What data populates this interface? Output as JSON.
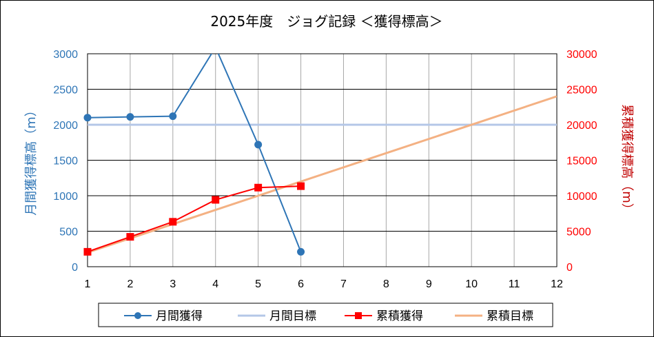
{
  "chart_data": {
    "type": "line",
    "title": "2025年度　ジョグ記録 ＜獲得標高＞",
    "xlabel": "",
    "ylabel": "月間獲得標高（m）",
    "y2label": "累積獲得標高（m）",
    "x": [
      1,
      2,
      3,
      4,
      5,
      6,
      7,
      8,
      9,
      10,
      11,
      12
    ],
    "xlim": [
      1,
      12
    ],
    "ylim": [
      0,
      3000
    ],
    "yticks": [
      0,
      500,
      1000,
      1500,
      2000,
      2500,
      3000
    ],
    "y2lim": [
      0,
      30000
    ],
    "y2ticks": [
      0,
      5000,
      10000,
      15000,
      20000,
      25000,
      30000
    ],
    "grid": true,
    "legend": "bottom",
    "series": [
      {
        "name": "月間獲得",
        "axis": "left",
        "color": "#2E75B6",
        "marker": "circle",
        "x": [
          1,
          2,
          3,
          4,
          5,
          6
        ],
        "values": [
          2100,
          2110,
          2120,
          3090,
          1720,
          210
        ]
      },
      {
        "name": "月間目標",
        "axis": "left",
        "color": "#B4C7E7",
        "marker": "none",
        "x": [
          1,
          12
        ],
        "values": [
          2000,
          2000
        ]
      },
      {
        "name": "累積獲得",
        "axis": "right",
        "color": "#FF0000",
        "marker": "square",
        "x": [
          1,
          2,
          3,
          4,
          5,
          6
        ],
        "values": [
          2100,
          4210,
          6330,
          9420,
          11140,
          11350
        ]
      },
      {
        "name": "累積目標",
        "axis": "right",
        "color": "#F4B183",
        "marker": "none",
        "x": [
          1,
          12
        ],
        "values": [
          2000,
          24000
        ]
      }
    ]
  }
}
